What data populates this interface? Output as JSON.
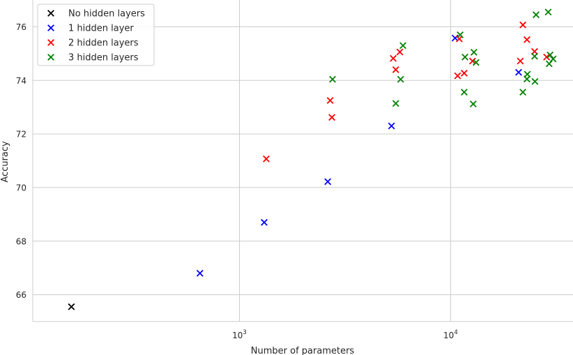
{
  "chart_data": {
    "type": "scatter",
    "title": "",
    "xlabel": "Number of parameters",
    "ylabel": "Accuracy",
    "xscale": "log",
    "xlim": [
      105,
      38000
    ],
    "ylim": [
      65.0,
      77.0
    ],
    "x_ticks": [
      {
        "value": 1000,
        "base": "10",
        "exp": "3"
      },
      {
        "value": 10000,
        "base": "10",
        "exp": "4"
      }
    ],
    "y_ticks": [
      {
        "value": 66,
        "label": "66"
      },
      {
        "value": 68,
        "label": "68"
      },
      {
        "value": 70,
        "label": "70"
      },
      {
        "value": 72,
        "label": "72"
      },
      {
        "value": 74,
        "label": "74"
      },
      {
        "value": 76,
        "label": "76"
      }
    ],
    "grid": true,
    "legend_position": "top-left",
    "marker": "x",
    "series": [
      {
        "name": "No hidden layers",
        "color": "#000000",
        "points": [
          [
            160,
            65.55
          ]
        ]
      },
      {
        "name": "1 hidden layer",
        "color": "#0000ff",
        "points": [
          [
            650,
            66.8
          ],
          [
            1310,
            68.7
          ],
          [
            2620,
            70.22
          ],
          [
            5250,
            72.3
          ],
          [
            10500,
            75.58
          ],
          [
            21000,
            74.3
          ]
        ]
      },
      {
        "name": "2 hidden layers",
        "color": "#ff0000",
        "points": [
          [
            1340,
            71.07
          ],
          [
            2690,
            73.25
          ],
          [
            2740,
            72.62
          ],
          [
            5350,
            74.82
          ],
          [
            5500,
            74.4
          ],
          [
            5750,
            75.06
          ],
          [
            10800,
            74.17
          ],
          [
            11000,
            75.55
          ],
          [
            11600,
            74.27
          ],
          [
            12700,
            74.72
          ],
          [
            21400,
            74.72
          ],
          [
            22000,
            76.07
          ],
          [
            23000,
            75.52
          ],
          [
            25000,
            75.08
          ],
          [
            28500,
            74.87
          ]
        ]
      },
      {
        "name": "3 hidden layers",
        "color": "#008000",
        "points": [
          [
            2760,
            74.04
          ],
          [
            5500,
            73.14
          ],
          [
            5800,
            74.04
          ],
          [
            5950,
            75.3
          ],
          [
            11100,
            75.7
          ],
          [
            11600,
            73.56
          ],
          [
            11700,
            74.87
          ],
          [
            12800,
            73.12
          ],
          [
            12900,
            75.05
          ],
          [
            13200,
            74.67
          ],
          [
            22000,
            73.56
          ],
          [
            23000,
            74.05
          ],
          [
            23100,
            74.23
          ],
          [
            25000,
            74.9
          ],
          [
            25100,
            73.96
          ],
          [
            25400,
            76.45
          ],
          [
            29000,
            76.55
          ],
          [
            29300,
            74.62
          ],
          [
            29600,
            74.95
          ],
          [
            30600,
            74.8
          ]
        ]
      }
    ]
  }
}
